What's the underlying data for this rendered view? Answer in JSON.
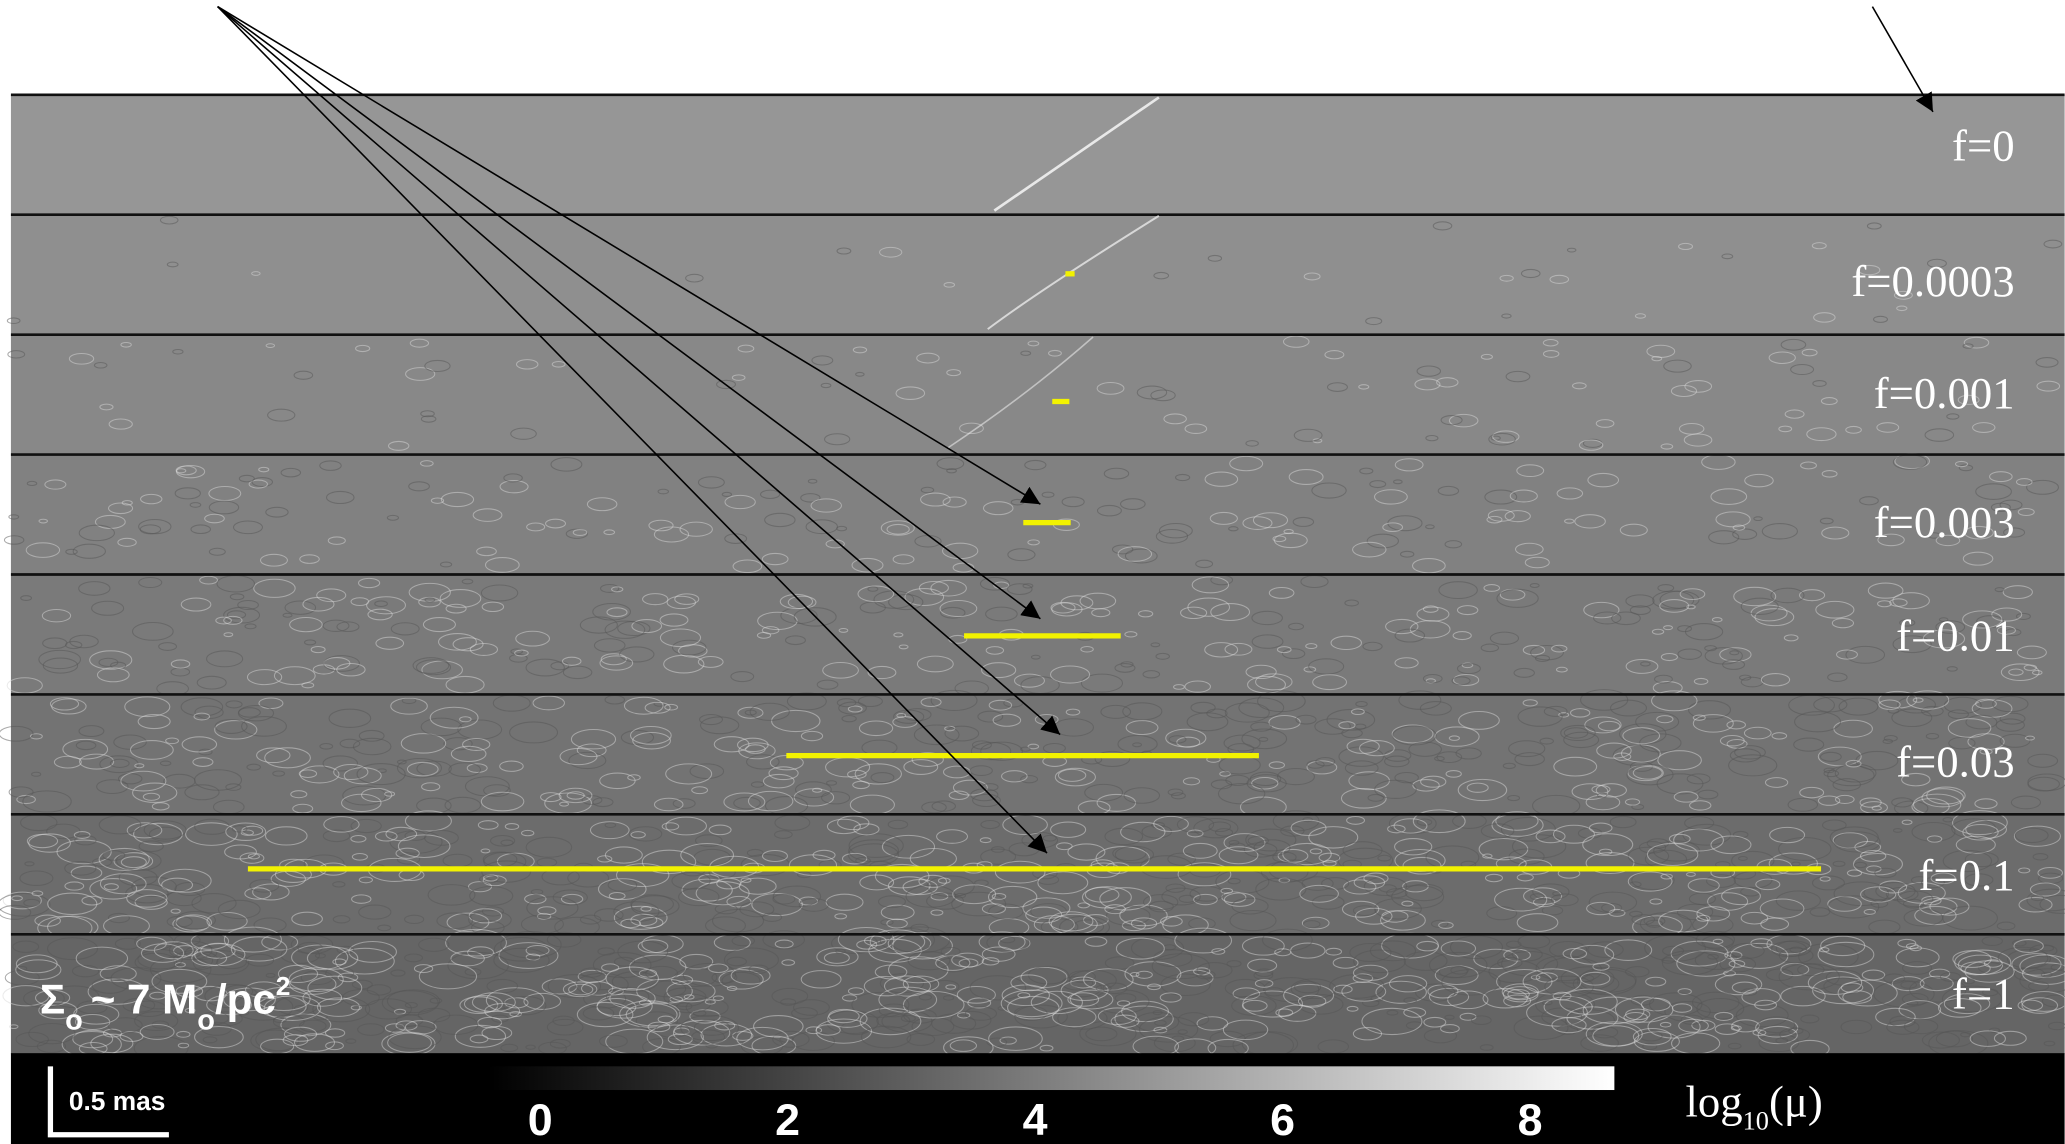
{
  "panels": [
    {
      "label": "f=0"
    },
    {
      "label": "f=0.0003"
    },
    {
      "label": "f=0.001"
    },
    {
      "label": "f=0.003"
    },
    {
      "label": "f=0.01"
    },
    {
      "label": "f=0.03"
    },
    {
      "label": "f=0.1"
    },
    {
      "label": "f=1"
    }
  ],
  "surface_density": {
    "symbol": "Σ",
    "symbol_sub": "o",
    "text": "~ 7 M",
    "mass_sub": "o",
    "unit": "/pc",
    "unit_sup": "2"
  },
  "scale_bar": "0.5 mas",
  "colorbar": {
    "ticks": [
      0,
      2,
      4,
      6,
      8
    ],
    "label": "log",
    "label_sub": "10",
    "label_suffix": "(μ)"
  }
}
